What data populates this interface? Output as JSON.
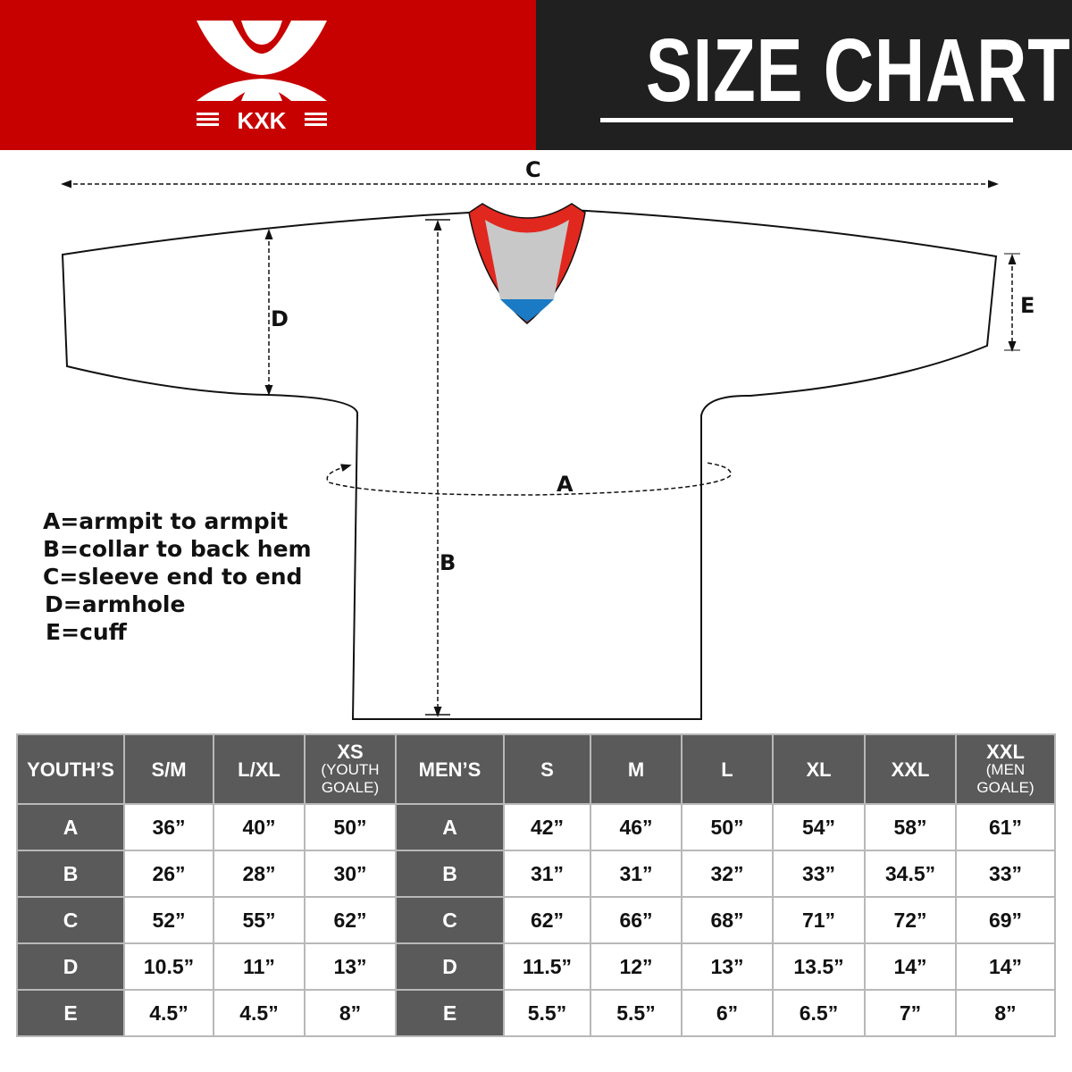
{
  "brand": {
    "logo_text": "KXK",
    "color": "#c70000"
  },
  "title": "SIZE CHART",
  "diagram": {
    "labels": {
      "a": "A",
      "b": "B",
      "c": "C",
      "d": "D",
      "e": "E"
    }
  },
  "legend": [
    "A=armpit to armpit",
    "B=collar to back hem",
    "C=sleeve end to end",
    "D=armhole",
    "E=cuff"
  ],
  "table": {
    "youth_header": "YOUTH’S",
    "youth_sizes": [
      {
        "main": "S/M"
      },
      {
        "main": "L/XL"
      },
      {
        "main": "XS",
        "sub": "(YOUTH GOALE)"
      }
    ],
    "men_header": "MEN’S",
    "men_sizes": [
      {
        "main": "S"
      },
      {
        "main": "M"
      },
      {
        "main": "L"
      },
      {
        "main": "XL"
      },
      {
        "main": "XXL"
      },
      {
        "main": "XXL",
        "sub": "(MEN GOALE)"
      }
    ],
    "rows": [
      {
        "label": "A",
        "youth": [
          "36”",
          "40”",
          "50”"
        ],
        "men": [
          "42”",
          "46”",
          "50”",
          "54”",
          "58”",
          "61”"
        ]
      },
      {
        "label": "B",
        "youth": [
          "26”",
          "28”",
          "30”"
        ],
        "men": [
          "31”",
          "31”",
          "32”",
          "33”",
          "34.5”",
          "33”"
        ]
      },
      {
        "label": "C",
        "youth": [
          "52”",
          "55”",
          "62”"
        ],
        "men": [
          "62”",
          "66”",
          "68”",
          "71”",
          "72”",
          "69”"
        ]
      },
      {
        "label": "D",
        "youth": [
          "10.5”",
          "11”",
          "13”"
        ],
        "men": [
          "11.5”",
          "12”",
          "13”",
          "13.5”",
          "14”",
          "14”"
        ]
      },
      {
        "label": "E",
        "youth": [
          "4.5”",
          "4.5”",
          "8”"
        ],
        "men": [
          "5.5”",
          "5.5”",
          "6”",
          "6.5”",
          "7”",
          "8”"
        ]
      }
    ]
  }
}
